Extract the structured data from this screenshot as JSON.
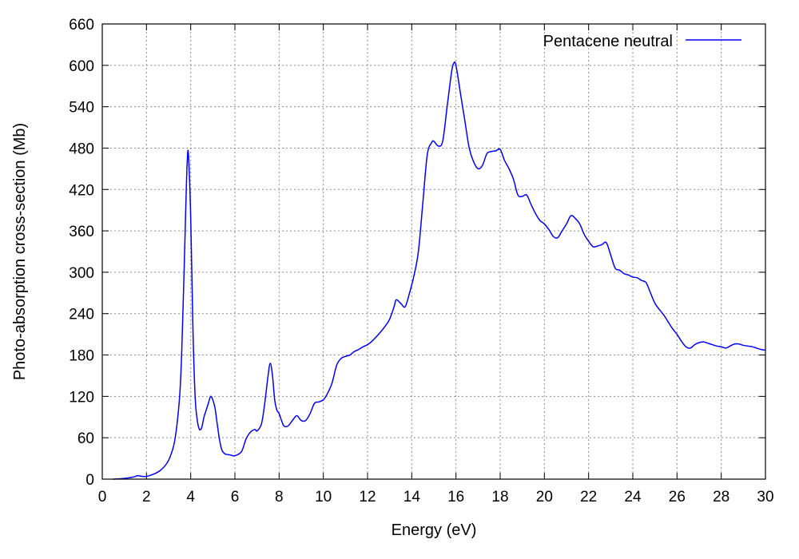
{
  "chart_data": {
    "type": "line",
    "xlabel": "Energy (eV)",
    "ylabel": "Photo-absorption cross-section (Mb)",
    "xlim": [
      0,
      30
    ],
    "ylim": [
      0,
      660
    ],
    "xticks": [
      0,
      2,
      4,
      6,
      8,
      10,
      12,
      14,
      16,
      18,
      20,
      22,
      24,
      26,
      28,
      30
    ],
    "yticks": [
      0,
      60,
      120,
      180,
      240,
      300,
      360,
      420,
      480,
      540,
      600,
      660
    ],
    "grid": true,
    "legend_position": "top-right",
    "series": [
      {
        "name": "Pentacene neutral",
        "color": "#0000ff",
        "x": [
          0.5,
          1.0,
          1.4,
          1.6,
          1.8,
          2.0,
          2.3,
          2.6,
          2.9,
          3.1,
          3.3,
          3.5,
          3.6,
          3.7,
          3.8,
          3.85,
          3.9,
          4.0,
          4.1,
          4.2,
          4.3,
          4.4,
          4.5,
          4.6,
          4.7,
          4.8,
          4.9,
          5.0,
          5.1,
          5.2,
          5.3,
          5.4,
          5.5,
          5.6,
          5.8,
          6.0,
          6.3,
          6.5,
          6.7,
          6.9,
          7.0,
          7.2,
          7.35,
          7.5,
          7.6,
          7.7,
          7.8,
          7.9,
          8.0,
          8.2,
          8.4,
          8.6,
          8.8,
          9.0,
          9.2,
          9.4,
          9.6,
          9.8,
          10.0,
          10.2,
          10.4,
          10.6,
          10.8,
          11.0,
          11.2,
          11.4,
          11.6,
          11.8,
          12.0,
          12.2,
          12.5,
          12.8,
          13.0,
          13.2,
          13.3,
          13.5,
          13.7,
          13.9,
          14.1,
          14.3,
          14.5,
          14.7,
          14.9,
          15.0,
          15.2,
          15.4,
          15.6,
          15.8,
          15.9,
          16.0,
          16.2,
          16.4,
          16.6,
          16.8,
          17.0,
          17.2,
          17.4,
          17.6,
          17.8,
          18.0,
          18.2,
          18.4,
          18.6,
          18.8,
          19.0,
          19.2,
          19.4,
          19.6,
          19.8,
          20.0,
          20.2,
          20.4,
          20.6,
          20.8,
          21.0,
          21.2,
          21.4,
          21.6,
          21.8,
          22.0,
          22.2,
          22.4,
          22.6,
          22.8,
          23.0,
          23.2,
          23.4,
          23.6,
          23.8,
          24.0,
          24.2,
          24.4,
          24.6,
          24.8,
          25.0,
          25.2,
          25.4,
          25.6,
          25.8,
          26.0,
          26.2,
          26.4,
          26.6,
          26.8,
          27.0,
          27.2,
          27.4,
          27.6,
          27.8,
          28.0,
          28.2,
          28.4,
          28.6,
          28.8,
          29.0,
          29.2,
          29.4,
          29.6,
          29.8,
          30.0
        ],
        "y": [
          0,
          1,
          3,
          5,
          4,
          4,
          7,
          12,
          22,
          35,
          60,
          120,
          190,
          300,
          420,
          465,
          470,
          380,
          220,
          120,
          85,
          72,
          75,
          90,
          100,
          110,
          120,
          115,
          103,
          80,
          58,
          43,
          38,
          36,
          35,
          34,
          40,
          58,
          68,
          72,
          70,
          80,
          110,
          150,
          168,
          150,
          115,
          100,
          95,
          78,
          77,
          85,
          92,
          85,
          85,
          95,
          110,
          112,
          115,
          125,
          140,
          165,
          175,
          178,
          180,
          185,
          188,
          192,
          195,
          200,
          210,
          222,
          232,
          250,
          260,
          255,
          250,
          270,
          295,
          330,
          400,
          470,
          488,
          490,
          483,
          490,
          540,
          590,
          603,
          600,
          560,
          520,
          480,
          460,
          450,
          455,
          472,
          475,
          476,
          478,
          462,
          450,
          435,
          412,
          410,
          412,
          398,
          385,
          375,
          370,
          362,
          352,
          350,
          360,
          370,
          382,
          378,
          370,
          355,
          345,
          337,
          338,
          340,
          343,
          325,
          306,
          303,
          298,
          296,
          293,
          292,
          288,
          285,
          270,
          255,
          246,
          238,
          228,
          218,
          210,
          200,
          192,
          190,
          195,
          198,
          199,
          197,
          195,
          193,
          192,
          190,
          193,
          196,
          196,
          194,
          193,
          192,
          190,
          188,
          187
        ]
      }
    ]
  }
}
